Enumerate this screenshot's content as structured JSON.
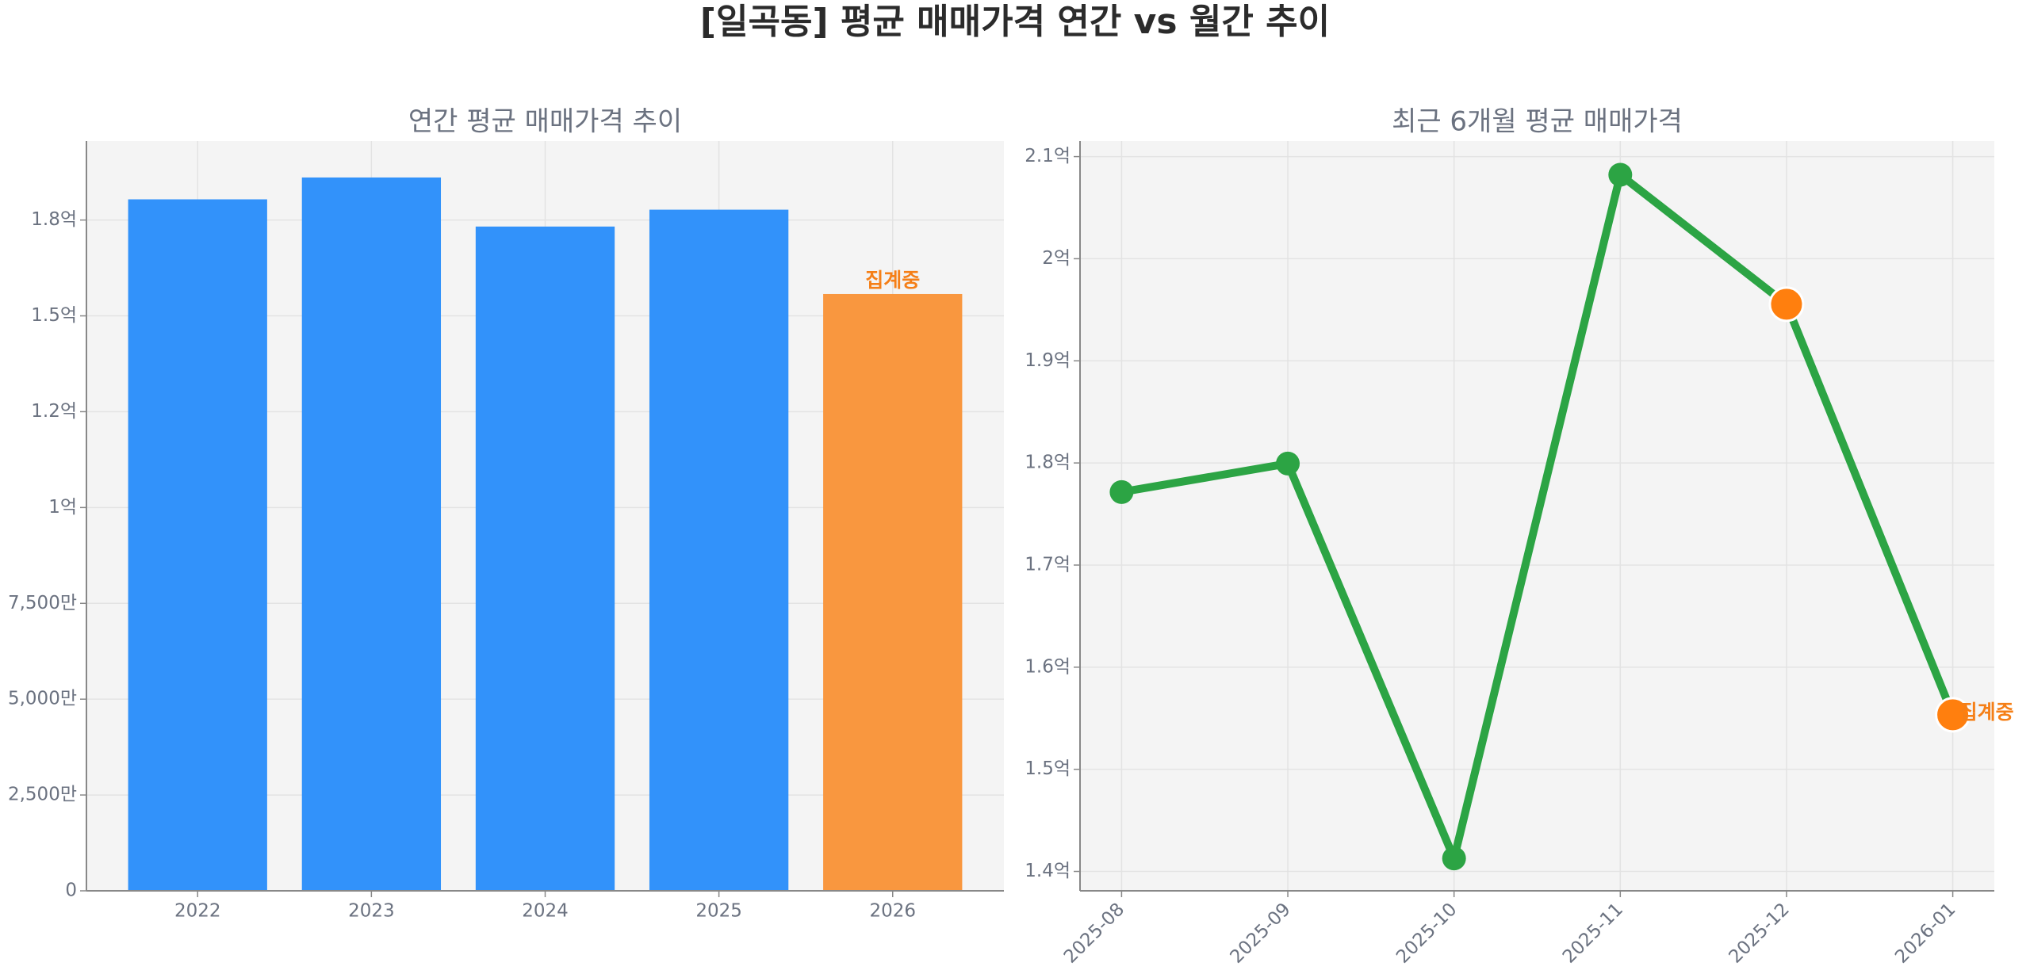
{
  "title": "[일곡동] 평균 매매가격 연간 vs 월간 추이",
  "chart_data": [
    {
      "type": "bar",
      "title": "연간 평균 매매가격 추이",
      "categories": [
        "2022",
        "2023",
        "2024",
        "2025",
        "2026"
      ],
      "values": [
        180400000,
        186100000,
        173300000,
        177700000,
        155700000
      ],
      "colors": [
        "#3292fa",
        "#3292fa",
        "#3292fa",
        "#3292fa",
        "#f9973f"
      ],
      "annotation": "집계중",
      "annotation_color": "#f57f17",
      "ylim": [
        0,
        195600000
      ],
      "yticks": [
        0,
        {
          "value": 25000000,
          "label": "2,500만"
        },
        {
          "value": 50000000,
          "label": "5,000만"
        },
        {
          "value": 75000000,
          "label": "7,500만"
        },
        {
          "value": 100000000,
          "label": "1억"
        },
        {
          "value": 125000000,
          "label": "1.2억"
        },
        {
          "value": 150000000,
          "label": "1.5억"
        },
        {
          "value": 175000000,
          "label": "1.8억"
        }
      ],
      "grid": true
    },
    {
      "type": "line",
      "title": "최근 6개월 평균 매매가격",
      "categories": [
        "2025-08",
        "2025-09",
        "2025-10",
        "2025-11",
        "2025-12",
        "2026-01"
      ],
      "series": [
        {
          "color": "#2ca444",
          "values": [
            177150000,
            179940000,
            141270000,
            208220000,
            195540000,
            155340000
          ],
          "marker_colors": [
            "#2ca444",
            "#2ca444",
            "#2ca444",
            "#2ca444",
            "#ff7f0e",
            "#ff7f0e"
          ]
        }
      ],
      "annotation": "집계중",
      "annotation_color": "#f57f17",
      "ylim": [
        138100000,
        211520000
      ],
      "yticks": [
        {
          "value": 140000000,
          "label": "1.4억"
        },
        {
          "value": 150000000,
          "label": "1.5억"
        },
        {
          "value": 160000000,
          "label": "1.6억"
        },
        {
          "value": 170000000,
          "label": "1.7억"
        },
        {
          "value": 180000000,
          "label": "1.8억"
        },
        {
          "value": 190000000,
          "label": "1.9억"
        },
        {
          "value": 200000000,
          "label": "2억"
        },
        {
          "value": 210000000,
          "label": "2.1억"
        }
      ],
      "grid": true
    }
  ]
}
